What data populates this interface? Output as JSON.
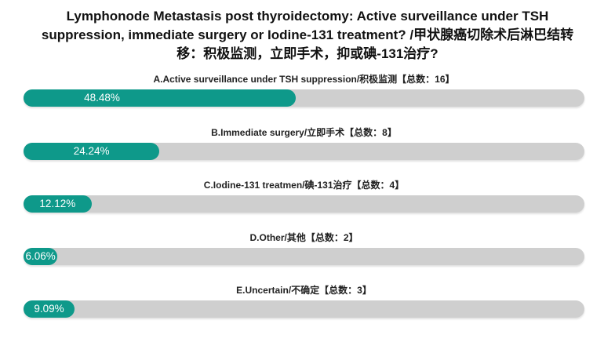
{
  "chart_data": {
    "type": "bar",
    "orientation": "horizontal",
    "title": "Lymphonode Metastasis post thyroidectomy: Active surveillance under TSH suppression, immediate surgery or Iodine-131 treatment?  /甲状腺癌切除术后淋巴结转移：积极监测，立即手术，抑或碘-131治疗?",
    "xlim": [
      0,
      100
    ],
    "grid": false,
    "colors": {
      "fill": "#0e998a",
      "track": "#cfcfcf"
    },
    "bars": [
      {
        "label": "A.Active surveillance under TSH suppression/积极监测【总数：16】",
        "count": 16,
        "percent": 48.48,
        "percent_label": "48.48%"
      },
      {
        "label": "B.Immediate surgery/立即手术【总数：8】",
        "count": 8,
        "percent": 24.24,
        "percent_label": "24.24%"
      },
      {
        "label": "C.Iodine-131 treatmen/碘-131治疗【总数：4】",
        "count": 4,
        "percent": 12.12,
        "percent_label": "12.12%"
      },
      {
        "label": "D.Other/其他【总数：2】",
        "count": 2,
        "percent": 6.06,
        "percent_label": "6.06%"
      },
      {
        "label": "E.Uncertain/不确定【总数：3】",
        "count": 3,
        "percent": 9.09,
        "percent_label": "9.09%"
      }
    ]
  }
}
